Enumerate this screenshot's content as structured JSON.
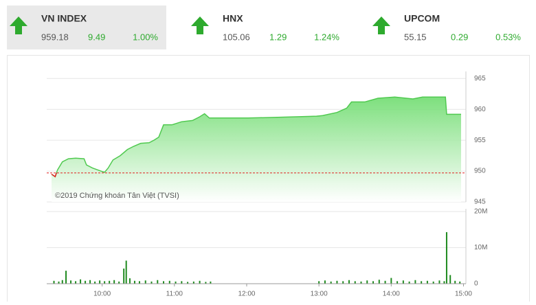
{
  "tickers": [
    {
      "name": "VN INDEX",
      "price": "959.18",
      "change": "9.49",
      "percent": "1.00%"
    },
    {
      "name": "HNX",
      "price": "105.06",
      "change": "1.29",
      "percent": "1.24%"
    },
    {
      "name": "UPCOM",
      "price": "55.15",
      "change": "0.29",
      "percent": "0.53%"
    }
  ],
  "chart_data": [
    {
      "type": "area",
      "annotation": "©2019 Chứng khoán Tân Việt (TVSI)",
      "color": "#4fc94f",
      "reference_line": 949.7,
      "reference_color": "#e02020",
      "x": [
        558,
        561,
        563,
        567,
        572,
        578,
        585,
        587,
        592,
        599,
        602,
        605,
        609,
        615,
        621,
        626,
        632,
        639,
        643,
        647,
        651,
        658,
        666,
        675,
        681,
        685,
        689,
        703,
        721,
        743,
        761,
        778,
        783,
        795,
        803,
        807,
        818,
        829,
        843,
        858,
        866,
        885,
        886,
        898
      ],
      "values": [
        949.5,
        949.1,
        950.2,
        951.5,
        952,
        952.1,
        952,
        951,
        950.5,
        950,
        949.8,
        950.5,
        951.8,
        952.5,
        953.5,
        954,
        954.5,
        954.6,
        955,
        955.5,
        957.5,
        957.5,
        958,
        958.2,
        958.8,
        959.3,
        958.6,
        958.6,
        958.6,
        958.7,
        958.8,
        958.9,
        959,
        959.5,
        960.2,
        961.2,
        961.2,
        961.8,
        962,
        961.7,
        962,
        962,
        959.2,
        959.2
      ],
      "xlim": [
        554,
        902
      ],
      "ylim": [
        945,
        965.7
      ],
      "yticks": [
        945,
        950,
        955,
        960,
        965
      ],
      "grid": true
    },
    {
      "type": "bar",
      "color": "#1f8a1f",
      "x": [
        560,
        564,
        567,
        570,
        574,
        578,
        582,
        586,
        590,
        594,
        598,
        602,
        606,
        610,
        614,
        618,
        620,
        623,
        627,
        631,
        636,
        641,
        646,
        651,
        656,
        661,
        666,
        671,
        676,
        681,
        686,
        690,
        780,
        785,
        790,
        795,
        800,
        805,
        810,
        815,
        820,
        825,
        830,
        835,
        840,
        845,
        850,
        855,
        860,
        865,
        870,
        875,
        880,
        884,
        886,
        889,
        893,
        897
      ],
      "values": [
        800000,
        600000,
        1000000,
        3600000,
        900000,
        700000,
        1200000,
        800000,
        1000000,
        600000,
        900000,
        700000,
        800000,
        1000000,
        600000,
        4200000,
        6400000,
        1500000,
        800000,
        700000,
        900000,
        600000,
        1000000,
        700000,
        800000,
        600000,
        700000,
        500000,
        600000,
        800000,
        500000,
        600000,
        700000,
        900000,
        600000,
        800000,
        700000,
        1000000,
        700000,
        600000,
        900000,
        700000,
        1100000,
        800000,
        1600000,
        700000,
        900000,
        600000,
        1000000,
        700000,
        800000,
        600000,
        900000,
        700000,
        14300000,
        2400000,
        800000,
        600000
      ],
      "xlim": [
        554,
        902
      ],
      "ylim": [
        0,
        20000000
      ],
      "yticks": [
        0,
        {
          "value": 10000000,
          "label": "10M"
        },
        {
          "value": 20000000,
          "label": "20M"
        }
      ],
      "xticks": [
        {
          "value": 600,
          "label": "10:00"
        },
        {
          "value": 660,
          "label": "11:00"
        },
        {
          "value": 720,
          "label": "12:00"
        },
        {
          "value": 780,
          "label": "13:00"
        },
        {
          "value": 840,
          "label": "14:00"
        },
        {
          "value": 900,
          "label": "15:00"
        }
      ],
      "grid": true
    }
  ]
}
